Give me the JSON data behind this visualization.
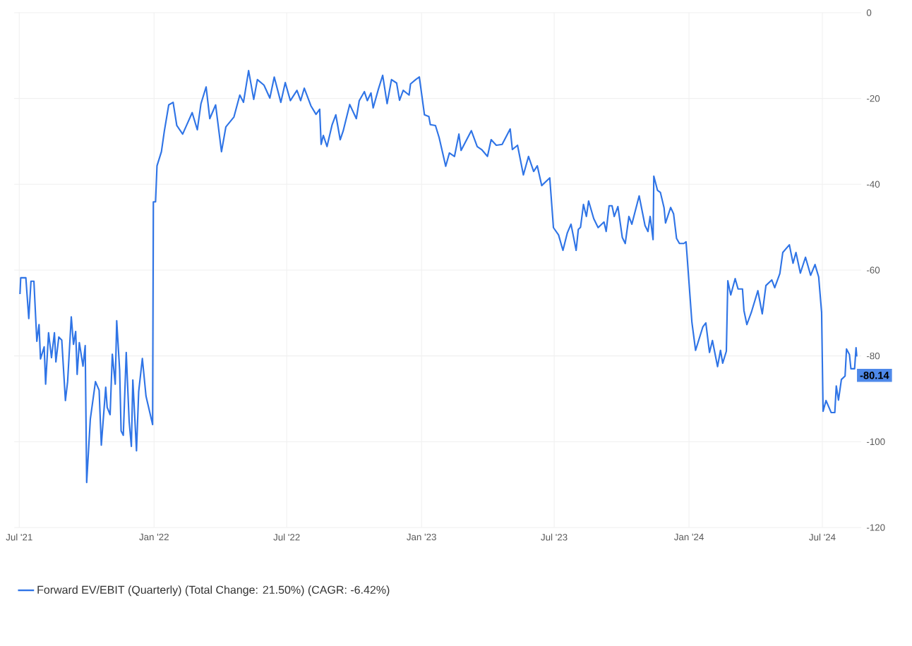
{
  "chart_data": {
    "type": "line",
    "xlim": [
      "2021-06-24",
      "2024-08-23"
    ],
    "ylim": [
      -120,
      0
    ],
    "xticks": [
      {
        "value": "2021-07-01",
        "label": "Jul '21"
      },
      {
        "value": "2022-01-01",
        "label": "Jan '22"
      },
      {
        "value": "2022-07-01",
        "label": "Jul '22"
      },
      {
        "value": "2023-01-01",
        "label": "Jan '23"
      },
      {
        "value": "2023-07-01",
        "label": "Jul '23"
      },
      {
        "value": "2024-01-01",
        "label": "Jan '24"
      },
      {
        "value": "2024-07-01",
        "label": "Jul '24"
      }
    ],
    "yticks": [
      0,
      -20,
      -40,
      -60,
      -80,
      -100,
      -120
    ],
    "grid": true,
    "legend": "bottom",
    "line_style": "solid",
    "annotations": [
      {
        "text": "-80.14",
        "x": "2024-08-17",
        "y": -80.14
      }
    ],
    "series": [
      {
        "name": "Forward EV/EBIT (Quarterly) (Total Change: 21.50%) (CAGR: -6.42%)",
        "color": "#2f74e6",
        "x": [
          "2021-07-02",
          "2021-07-03",
          "2021-07-10",
          "2021-07-14",
          "2021-07-17",
          "2021-07-21",
          "2021-07-25",
          "2021-07-28",
          "2021-07-30",
          "2021-08-04",
          "2021-08-06",
          "2021-08-10",
          "2021-08-14",
          "2021-08-18",
          "2021-08-20",
          "2021-08-24",
          "2021-08-28",
          "2021-09-02",
          "2021-09-05",
          "2021-09-10",
          "2021-09-13",
          "2021-09-16",
          "2021-09-18",
          "2021-09-21",
          "2021-09-26",
          "2021-09-29",
          "2021-10-01",
          "2021-10-06",
          "2021-10-13",
          "2021-10-18",
          "2021-10-21",
          "2021-10-27",
          "2021-10-29",
          "2021-11-02",
          "2021-11-05",
          "2021-11-09",
          "2021-11-11",
          "2021-11-15",
          "2021-11-17",
          "2021-11-20",
          "2021-11-24",
          "2021-11-28",
          "2021-12-01",
          "2021-12-03",
          "2021-12-08",
          "2021-12-11",
          "2021-12-16",
          "2021-12-21",
          "2021-12-30",
          "2021-12-31",
          "2022-01-03",
          "2022-01-05",
          "2022-01-11",
          "2022-01-15",
          "2022-01-21",
          "2022-01-27",
          "2022-02-01",
          "2022-02-09",
          "2022-02-15",
          "2022-02-22",
          "2022-03-01",
          "2022-03-06",
          "2022-03-13",
          "2022-03-18",
          "2022-03-26",
          "2022-04-03",
          "2022-04-09",
          "2022-04-20",
          "2022-04-28",
          "2022-05-03",
          "2022-05-10",
          "2022-05-17",
          "2022-05-22",
          "2022-05-31",
          "2022-06-08",
          "2022-06-14",
          "2022-06-23",
          "2022-06-29",
          "2022-07-06",
          "2022-07-15",
          "2022-07-20",
          "2022-07-25",
          "2022-08-03",
          "2022-08-10",
          "2022-08-15",
          "2022-08-17",
          "2022-08-20",
          "2022-08-25",
          "2022-09-01",
          "2022-09-06",
          "2022-09-12",
          "2022-09-16",
          "2022-09-25",
          "2022-10-04",
          "2022-10-08",
          "2022-10-15",
          "2022-10-19",
          "2022-10-24",
          "2022-10-27",
          "2022-11-03",
          "2022-11-09",
          "2022-11-15",
          "2022-11-21",
          "2022-11-28",
          "2022-12-02",
          "2022-12-07",
          "2022-12-15",
          "2022-12-17",
          "2022-12-24",
          "2022-12-29",
          "2023-01-05",
          "2023-01-11",
          "2023-01-13",
          "2023-01-20",
          "2023-01-25",
          "2023-02-03",
          "2023-02-08",
          "2023-02-15",
          "2023-02-21",
          "2023-02-24",
          "2023-03-10",
          "2023-03-18",
          "2023-03-24",
          "2023-04-01",
          "2023-04-06",
          "2023-04-13",
          "2023-04-21",
          "2023-05-02",
          "2023-05-05",
          "2023-05-12",
          "2023-05-20",
          "2023-05-27",
          "2023-06-03",
          "2023-06-08",
          "2023-06-14",
          "2023-06-25",
          "2023-06-30",
          "2023-07-07",
          "2023-07-13",
          "2023-07-19",
          "2023-07-24",
          "2023-07-31",
          "2023-08-03",
          "2023-08-06",
          "2023-08-10",
          "2023-08-14",
          "2023-08-17",
          "2023-08-24",
          "2023-08-30",
          "2023-09-07",
          "2023-09-10",
          "2023-09-14",
          "2023-09-18",
          "2023-09-21",
          "2023-09-26",
          "2023-10-02",
          "2023-10-06",
          "2023-10-11",
          "2023-10-15",
          "2023-10-25",
          "2023-11-02",
          "2023-11-06",
          "2023-11-09",
          "2023-11-13",
          "2023-11-14",
          "2023-11-19",
          "2023-11-23",
          "2023-11-28",
          "2023-11-30",
          "2023-12-07",
          "2023-12-11",
          "2023-12-15",
          "2023-12-19",
          "2023-12-25",
          "2023-12-28",
          "2024-01-05",
          "2024-01-10",
          "2024-01-20",
          "2024-01-24",
          "2024-01-29",
          "2024-02-02",
          "2024-02-09",
          "2024-02-13",
          "2024-02-16",
          "2024-02-21",
          "2024-02-23",
          "2024-02-27",
          "2024-03-04",
          "2024-03-08",
          "2024-03-14",
          "2024-03-16",
          "2024-03-20",
          "2024-03-26",
          "2024-04-04",
          "2024-04-10",
          "2024-04-15",
          "2024-04-23",
          "2024-04-27",
          "2024-05-04",
          "2024-05-08",
          "2024-05-17",
          "2024-05-22",
          "2024-05-26",
          "2024-06-01",
          "2024-06-08",
          "2024-06-15",
          "2024-06-21",
          "2024-06-26",
          "2024-06-30",
          "2024-07-02",
          "2024-07-06",
          "2024-07-13",
          "2024-07-18",
          "2024-07-20",
          "2024-07-23",
          "2024-07-27",
          "2024-08-01",
          "2024-08-03",
          "2024-08-07",
          "2024-08-09",
          "2024-08-14",
          "2024-08-16",
          "2024-08-17"
        ],
        "values": [
          -65.6,
          -61.8,
          -61.8,
          -71.3,
          -62.6,
          -62.6,
          -76.6,
          -72.7,
          -80.7,
          -77.9,
          -86.6,
          -74.6,
          -80.4,
          -74.6,
          -81.4,
          -75.6,
          -76.3,
          -90.4,
          -86,
          -70.9,
          -77.3,
          -74.3,
          -84.3,
          -76.9,
          -82.4,
          -77.6,
          -109.5,
          -94.7,
          -86,
          -88,
          -100.8,
          -87.3,
          -92,
          -93.7,
          -79.6,
          -86.6,
          -71.8,
          -83.3,
          -97.5,
          -98.5,
          -79.2,
          -95.3,
          -101.1,
          -85.6,
          -102.1,
          -88.3,
          -80.6,
          -89.4,
          -96,
          -44.1,
          -44.1,
          -35.7,
          -32.4,
          -27.6,
          -21.5,
          -20.9,
          -26.3,
          -28.3,
          -26,
          -23.3,
          -27.3,
          -21.2,
          -17.3,
          -24.7,
          -21.5,
          -32.4,
          -26.6,
          -24.3,
          -19.2,
          -20.9,
          -13.5,
          -20.2,
          -15.6,
          -16.9,
          -19.9,
          -15,
          -20.9,
          -16.3,
          -20.5,
          -18.1,
          -20.5,
          -17.6,
          -21.7,
          -23.7,
          -22.5,
          -30.7,
          -28.6,
          -31.2,
          -26.1,
          -23.8,
          -29.6,
          -27.6,
          -21.4,
          -24.7,
          -20.5,
          -18.4,
          -20.5,
          -18.7,
          -22.2,
          -17.9,
          -14.6,
          -21.2,
          -15.6,
          -16.4,
          -20.4,
          -18.1,
          -19.2,
          -16.6,
          -15.6,
          -15,
          -23.8,
          -24.2,
          -26.1,
          -26.3,
          -29.1,
          -35.8,
          -32.7,
          -33.5,
          -28.3,
          -32.1,
          -27.5,
          -31.2,
          -31.9,
          -33.5,
          -29.6,
          -30.9,
          -30.7,
          -27.1,
          -31.9,
          -30.9,
          -37.8,
          -33.5,
          -37,
          -35.7,
          -40.3,
          -38.5,
          -50.1,
          -51.8,
          -55.4,
          -51.3,
          -49.3,
          -55.4,
          -50.5,
          -50,
          -44.7,
          -47.5,
          -43.9,
          -48,
          -50.1,
          -48.8,
          -51,
          -45,
          -45,
          -47.5,
          -45.2,
          -52.4,
          -53.8,
          -47.5,
          -49.3,
          -42.7,
          -49.6,
          -51,
          -47.5,
          -52.9,
          -38.1,
          -41.4,
          -41.9,
          -45.5,
          -49,
          -45.4,
          -46.9,
          -52.6,
          -53.8,
          -53.8,
          -53.4,
          -72.2,
          -78.7,
          -73.2,
          -72.3,
          -79.2,
          -76.4,
          -82.5,
          -78.7,
          -81.7,
          -78.9,
          -62.5,
          -65.8,
          -62,
          -64.4,
          -64.4,
          -69.4,
          -72.7,
          -69.9,
          -64.8,
          -70.2,
          -63.6,
          -62.3,
          -64.1,
          -60.8,
          -55.9,
          -54.1,
          -58.4,
          -55.9,
          -60.7,
          -57,
          -61.2,
          -58.7,
          -61.6,
          -69.9,
          -92.9,
          -90.4,
          -93.2,
          -93.2,
          -87,
          -90.3,
          -85.5,
          -84.7,
          -78.4,
          -79.7,
          -83,
          -83,
          -78.1,
          -80.14
        ]
      }
    ]
  }
}
